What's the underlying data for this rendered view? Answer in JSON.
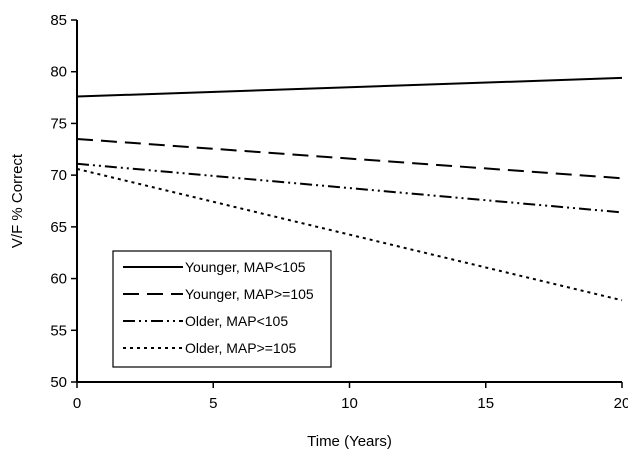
{
  "chart_data": {
    "type": "line",
    "title": "",
    "xlabel": "Time (Years)",
    "ylabel": "V/F % Correct",
    "xlim": [
      0,
      20
    ],
    "ylim": [
      50,
      85
    ],
    "x_ticks": [
      "0",
      "5",
      "10",
      "15",
      "20"
    ],
    "y_ticks": [
      "50",
      "55",
      "60",
      "65",
      "70",
      "75",
      "80",
      "85"
    ],
    "grid": false,
    "legend_position": "bottom-left",
    "series": [
      {
        "name": "Younger, MAP<105",
        "x": [
          0,
          20
        ],
        "y": [
          77.6,
          79.4
        ],
        "dash": "solid"
      },
      {
        "name": "Younger, MAP>=105",
        "x": [
          0,
          20
        ],
        "y": [
          73.5,
          69.7
        ],
        "dash": "dashed"
      },
      {
        "name": "Older, MAP<105",
        "x": [
          0,
          20
        ],
        "y": [
          71.1,
          66.4
        ],
        "dash": "dash-dot-dot"
      },
      {
        "name": "Older, MAP>=105",
        "x": [
          0,
          20
        ],
        "y": [
          70.6,
          57.9
        ],
        "dash": "dotted"
      }
    ]
  }
}
